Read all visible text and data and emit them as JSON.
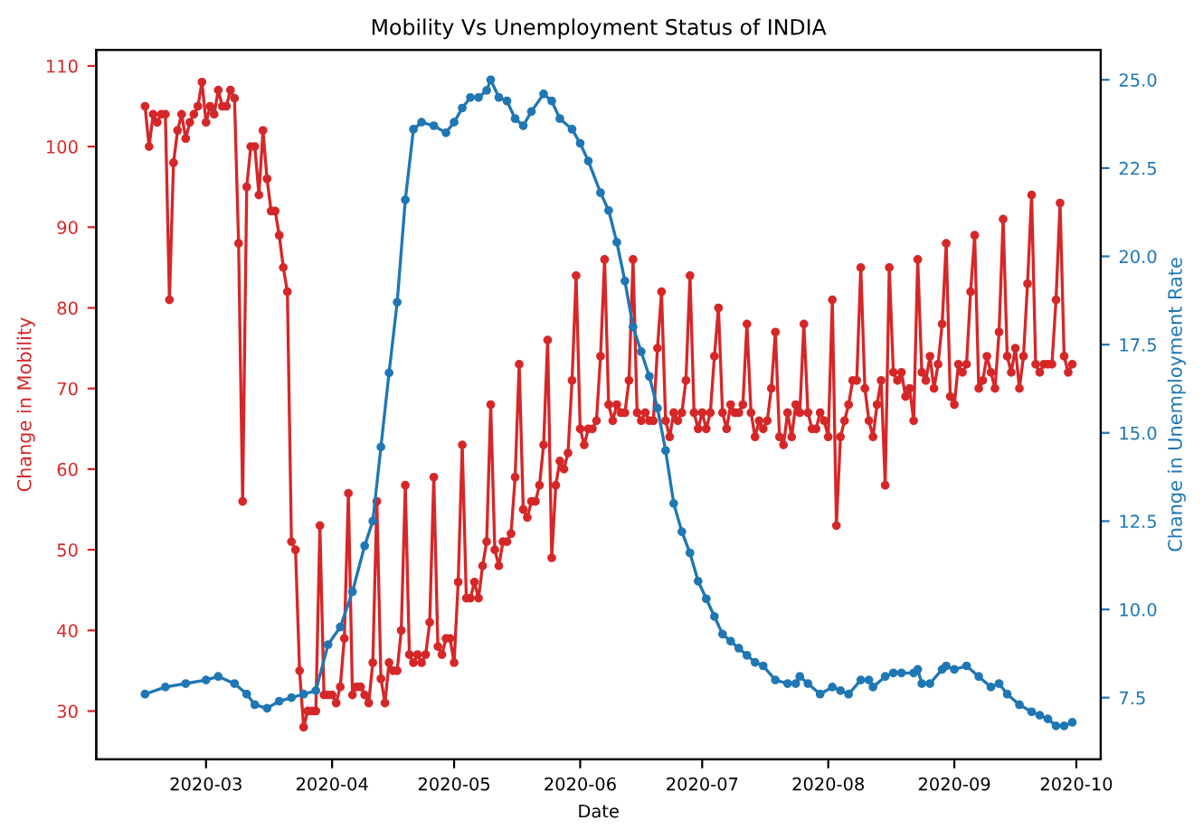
{
  "chart_data": {
    "type": "line",
    "title": "Mobility Vs Unemployment Status of INDIA",
    "xlabel": "Date",
    "ylabel": "Change in Mobility",
    "y2label": "Change in Unemployment Rate",
    "xlim": [
      "2020-02-03",
      "2020-10-07"
    ],
    "xticks": [
      "2020-03",
      "2020-04",
      "2020-05",
      "2020-06",
      "2020-07",
      "2020-08",
      "2020-09",
      "2020-10"
    ],
    "ylim": [
      24,
      112
    ],
    "yticks": [
      30,
      40,
      50,
      60,
      70,
      80,
      90,
      100,
      110
    ],
    "y2lim": [
      5.75,
      25.85
    ],
    "y2ticks": [
      7.5,
      {
        "value": 10,
        "label": "10.0"
      },
      12.5,
      {
        "value": 15,
        "label": "15.0"
      },
      17.5,
      {
        "value": 20,
        "label": "20.0"
      },
      22.5,
      {
        "value": 25,
        "label": "25.0"
      }
    ],
    "grid": false,
    "marker": "circle",
    "line_style": "solid",
    "series": [
      {
        "color": "#d62728",
        "axis": "y",
        "x": [
          "2020-02-15",
          "2020-02-16",
          "2020-02-17",
          "2020-02-18",
          "2020-02-19",
          "2020-02-20",
          "2020-02-21",
          "2020-02-22",
          "2020-02-23",
          "2020-02-24",
          "2020-02-25",
          "2020-02-26",
          "2020-02-27",
          "2020-02-28",
          "2020-02-29",
          "2020-03-01",
          "2020-03-02",
          "2020-03-03",
          "2020-03-04",
          "2020-03-05",
          "2020-03-06",
          "2020-03-07",
          "2020-03-08",
          "2020-03-09",
          "2020-03-10",
          "2020-03-11",
          "2020-03-12",
          "2020-03-13",
          "2020-03-14",
          "2020-03-15",
          "2020-03-16",
          "2020-03-17",
          "2020-03-18",
          "2020-03-19",
          "2020-03-20",
          "2020-03-21",
          "2020-03-22",
          "2020-03-23",
          "2020-03-24",
          "2020-03-25",
          "2020-03-26",
          "2020-03-27",
          "2020-03-28",
          "2020-03-29",
          "2020-03-30",
          "2020-03-31",
          "2020-04-01",
          "2020-04-02",
          "2020-04-03",
          "2020-04-04",
          "2020-04-05",
          "2020-04-06",
          "2020-04-07",
          "2020-04-08",
          "2020-04-09",
          "2020-04-10",
          "2020-04-11",
          "2020-04-12",
          "2020-04-13",
          "2020-04-14",
          "2020-04-15",
          "2020-04-16",
          "2020-04-17",
          "2020-04-18",
          "2020-04-19",
          "2020-04-20",
          "2020-04-21",
          "2020-04-22",
          "2020-04-23",
          "2020-04-24",
          "2020-04-25",
          "2020-04-26",
          "2020-04-27",
          "2020-04-28",
          "2020-04-29",
          "2020-04-30",
          "2020-05-01",
          "2020-05-02",
          "2020-05-03",
          "2020-05-04",
          "2020-05-05",
          "2020-05-06",
          "2020-05-07",
          "2020-05-08",
          "2020-05-09",
          "2020-05-10",
          "2020-05-11",
          "2020-05-12",
          "2020-05-13",
          "2020-05-14",
          "2020-05-15",
          "2020-05-16",
          "2020-05-17",
          "2020-05-18",
          "2020-05-19",
          "2020-05-20",
          "2020-05-21",
          "2020-05-22",
          "2020-05-23",
          "2020-05-24",
          "2020-05-25",
          "2020-05-26",
          "2020-05-27",
          "2020-05-28",
          "2020-05-29",
          "2020-05-30",
          "2020-05-31",
          "2020-06-01",
          "2020-06-02",
          "2020-06-03",
          "2020-06-04",
          "2020-06-05",
          "2020-06-06",
          "2020-06-07",
          "2020-06-08",
          "2020-06-09",
          "2020-06-10",
          "2020-06-11",
          "2020-06-12",
          "2020-06-13",
          "2020-06-14",
          "2020-06-15",
          "2020-06-16",
          "2020-06-17",
          "2020-06-18",
          "2020-06-19",
          "2020-06-20",
          "2020-06-21",
          "2020-06-22",
          "2020-06-23",
          "2020-06-24",
          "2020-06-25",
          "2020-06-26",
          "2020-06-27",
          "2020-06-28",
          "2020-06-29",
          "2020-06-30",
          "2020-07-01",
          "2020-07-02",
          "2020-07-03",
          "2020-07-04",
          "2020-07-05",
          "2020-07-06",
          "2020-07-07",
          "2020-07-08",
          "2020-07-09",
          "2020-07-10",
          "2020-07-11",
          "2020-07-12",
          "2020-07-13",
          "2020-07-14",
          "2020-07-15",
          "2020-07-16",
          "2020-07-17",
          "2020-07-18",
          "2020-07-19",
          "2020-07-20",
          "2020-07-21",
          "2020-07-22",
          "2020-07-23",
          "2020-07-24",
          "2020-07-25",
          "2020-07-26",
          "2020-07-27",
          "2020-07-28",
          "2020-07-29",
          "2020-07-30",
          "2020-07-31",
          "2020-08-01",
          "2020-08-02",
          "2020-08-03",
          "2020-08-04",
          "2020-08-05",
          "2020-08-06",
          "2020-08-07",
          "2020-08-08",
          "2020-08-09",
          "2020-08-10",
          "2020-08-11",
          "2020-08-12",
          "2020-08-13",
          "2020-08-14",
          "2020-08-15",
          "2020-08-16",
          "2020-08-17",
          "2020-08-18",
          "2020-08-19",
          "2020-08-20",
          "2020-08-21",
          "2020-08-22",
          "2020-08-23",
          "2020-08-24",
          "2020-08-25",
          "2020-08-26",
          "2020-08-27",
          "2020-08-28",
          "2020-08-29",
          "2020-08-30",
          "2020-08-31",
          "2020-09-01",
          "2020-09-02",
          "2020-09-03",
          "2020-09-04",
          "2020-09-05",
          "2020-09-06",
          "2020-09-07",
          "2020-09-08",
          "2020-09-09",
          "2020-09-10",
          "2020-09-11",
          "2020-09-12",
          "2020-09-13",
          "2020-09-14",
          "2020-09-15",
          "2020-09-16",
          "2020-09-17",
          "2020-09-18",
          "2020-09-19",
          "2020-09-20",
          "2020-09-21",
          "2020-09-22",
          "2020-09-23",
          "2020-09-24",
          "2020-09-25",
          "2020-09-26",
          "2020-09-27",
          "2020-09-28",
          "2020-09-29",
          "2020-09-30"
        ],
        "values": [
          105,
          100,
          104,
          103,
          104,
          104,
          81,
          98,
          102,
          104,
          101,
          103,
          104,
          105,
          108,
          103,
          105,
          104,
          107,
          105,
          105,
          107,
          106,
          88,
          56,
          95,
          100,
          100,
          94,
          102,
          96,
          92,
          92,
          89,
          85,
          82,
          51,
          50,
          35,
          28,
          30,
          30,
          30,
          53,
          32,
          32,
          32,
          31,
          33,
          39,
          57,
          32,
          33,
          33,
          32,
          31,
          36,
          56,
          34,
          31,
          36,
          35,
          35,
          40,
          58,
          37,
          36,
          37,
          36,
          37,
          41,
          59,
          38,
          37,
          39,
          39,
          36,
          46,
          63,
          44,
          44,
          46,
          44,
          48,
          51,
          68,
          50,
          48,
          51,
          51,
          52,
          59,
          73,
          55,
          54,
          56,
          56,
          58,
          63,
          76,
          49,
          58,
          61,
          60,
          62,
          71,
          84,
          65,
          63,
          65,
          65,
          66,
          74,
          86,
          68,
          66,
          68,
          67,
          67,
          71,
          86,
          67,
          66,
          67,
          66,
          66,
          75,
          82,
          66,
          64,
          67,
          66,
          67,
          71,
          84,
          67,
          65,
          67,
          65,
          67,
          74,
          80,
          67,
          65,
          68,
          67,
          67,
          68,
          78,
          67,
          64,
          66,
          65,
          66,
          70,
          77,
          64,
          63,
          67,
          64,
          68,
          67,
          78,
          67,
          65,
          65,
          67,
          66,
          64,
          81,
          53,
          64,
          66,
          68,
          71,
          71,
          85,
          70,
          66,
          64,
          68,
          71,
          58,
          85,
          72,
          71,
          72,
          69,
          70,
          66,
          86,
          72,
          71,
          74,
          70,
          73,
          78,
          88,
          69,
          68,
          73,
          72,
          73,
          82,
          89,
          70,
          71,
          74,
          72,
          70,
          77,
          91,
          74,
          72,
          75,
          70,
          74,
          83,
          94,
          73,
          72,
          73,
          73,
          73,
          81,
          93,
          74,
          72,
          73
        ]
      },
      {
        "color": "#1f77b4",
        "axis": "y2",
        "x": [
          "2020-02-15",
          "2020-02-20",
          "2020-02-25",
          "2020-03-01",
          "2020-03-04",
          "2020-03-08",
          "2020-03-11",
          "2020-03-13",
          "2020-03-16",
          "2020-03-19",
          "2020-03-22",
          "2020-03-25",
          "2020-03-28",
          "2020-03-31",
          "2020-04-03",
          "2020-04-06",
          "2020-04-09",
          "2020-04-11",
          "2020-04-13",
          "2020-04-15",
          "2020-04-17",
          "2020-04-19",
          "2020-04-21",
          "2020-04-23",
          "2020-04-26",
          "2020-04-29",
          "2020-05-01",
          "2020-05-03",
          "2020-05-05",
          "2020-05-07",
          "2020-05-09",
          "2020-05-10",
          "2020-05-12",
          "2020-05-14",
          "2020-05-16",
          "2020-05-18",
          "2020-05-20",
          "2020-05-23",
          "2020-05-25",
          "2020-05-27",
          "2020-05-30",
          "2020-06-01",
          "2020-06-03",
          "2020-06-06",
          "2020-06-08",
          "2020-06-10",
          "2020-06-12",
          "2020-06-14",
          "2020-06-16",
          "2020-06-18",
          "2020-06-20",
          "2020-06-22",
          "2020-06-24",
          "2020-06-26",
          "2020-06-28",
          "2020-06-30",
          "2020-07-02",
          "2020-07-04",
          "2020-07-06",
          "2020-07-08",
          "2020-07-10",
          "2020-07-12",
          "2020-07-14",
          "2020-07-16",
          "2020-07-19",
          "2020-07-22",
          "2020-07-24",
          "2020-07-25",
          "2020-07-27",
          "2020-07-30",
          "2020-08-02",
          "2020-08-04",
          "2020-08-06",
          "2020-08-09",
          "2020-08-11",
          "2020-08-12",
          "2020-08-15",
          "2020-08-17",
          "2020-08-19",
          "2020-08-22",
          "2020-08-23",
          "2020-08-24",
          "2020-08-26",
          "2020-08-29",
          "2020-08-30",
          "2020-09-01",
          "2020-09-04",
          "2020-09-07",
          "2020-09-10",
          "2020-09-12",
          "2020-09-14",
          "2020-09-17",
          "2020-09-20",
          "2020-09-22",
          "2020-09-24",
          "2020-09-26",
          "2020-09-28",
          "2020-09-30"
        ],
        "values": [
          7.6,
          7.8,
          7.9,
          8.0,
          8.1,
          7.9,
          7.6,
          7.3,
          7.2,
          7.4,
          7.5,
          7.6,
          7.7,
          9.0,
          9.5,
          10.5,
          11.8,
          12.5,
          14.6,
          16.7,
          18.7,
          21.6,
          23.6,
          23.8,
          23.7,
          23.5,
          23.8,
          24.2,
          24.5,
          24.5,
          24.7,
          25.0,
          24.5,
          24.4,
          23.9,
          23.7,
          24.1,
          24.6,
          24.4,
          23.9,
          23.6,
          23.2,
          22.7,
          21.8,
          21.3,
          20.4,
          19.3,
          18.0,
          17.3,
          16.6,
          15.7,
          14.5,
          13.0,
          12.2,
          11.6,
          10.8,
          10.3,
          9.8,
          9.3,
          9.1,
          8.9,
          8.7,
          8.5,
          8.4,
          8.0,
          7.9,
          7.9,
          8.1,
          7.9,
          7.6,
          7.8,
          7.7,
          7.6,
          8.0,
          8.0,
          7.8,
          8.1,
          8.2,
          8.2,
          8.2,
          8.3,
          7.9,
          7.9,
          8.3,
          8.4,
          8.3,
          8.4,
          8.1,
          7.8,
          7.9,
          7.6,
          7.3,
          7.1,
          7.0,
          6.9,
          6.7,
          6.7,
          6.8
        ]
      }
    ]
  }
}
